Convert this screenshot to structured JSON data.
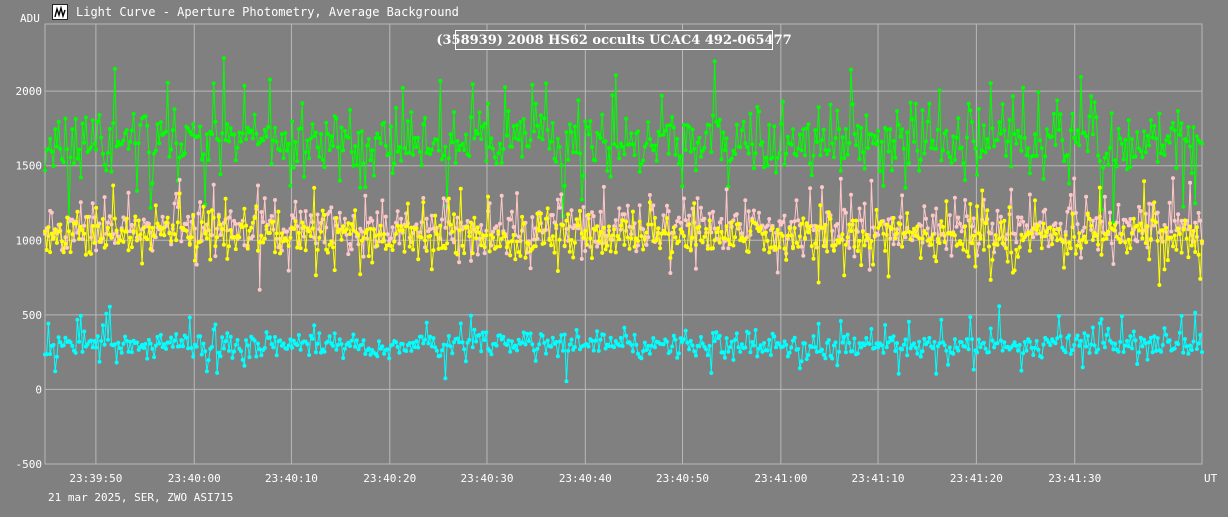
{
  "window": {
    "title": "Light Curve - Aperture Photometry, Average Background",
    "icon": "light-curve-app-icon"
  },
  "footer": {
    "info": "21 mar 2025, SER, ZWO ASI715"
  },
  "chart_data": {
    "type": "line",
    "title": "(358939) 2008 HS62 occults UCAC4 492-065477",
    "ylabel": "ADU",
    "xlabel": "UT",
    "ylim": [
      -500,
      2450
    ],
    "xlim": [
      0,
      1000
    ],
    "grid": true,
    "y_ticks": [
      -500,
      0,
      500,
      1000,
      1500,
      2000
    ],
    "x_ticks": [
      {
        "x": 44,
        "label": "23:39:50"
      },
      {
        "x": 129,
        "label": "23:40:00"
      },
      {
        "x": 213,
        "label": "23:40:10"
      },
      {
        "x": 298,
        "label": "23:40:20"
      },
      {
        "x": 382,
        "label": "23:40:30"
      },
      {
        "x": 467,
        "label": "23:40:40"
      },
      {
        "x": 551,
        "label": "23:40:50"
      },
      {
        "x": 636,
        "label": "23:41:00"
      },
      {
        "x": 720,
        "label": "23:41:10"
      },
      {
        "x": 805,
        "label": "23:41:20"
      },
      {
        "x": 890,
        "label": "23:41:30"
      }
    ],
    "series": [
      {
        "color": "#00ff00",
        "mean": 1650,
        "spread": 180,
        "spikes": 420,
        "seed": 11,
        "points": 680
      },
      {
        "color": "#ffc8c8",
        "mean": 1080,
        "spread": 130,
        "spikes": 280,
        "seed": 23,
        "points": 680
      },
      {
        "color": "#ffff00",
        "mean": 1030,
        "spread": 130,
        "spikes": 250,
        "seed": 37,
        "points": 680
      },
      {
        "color": "#00ffff",
        "mean": 300,
        "spread": 75,
        "spikes": 190,
        "seed": 53,
        "points": 680
      }
    ],
    "colors": {
      "background": "#808080",
      "grid": "#b8b8b8",
      "text": "#ffffff"
    }
  }
}
